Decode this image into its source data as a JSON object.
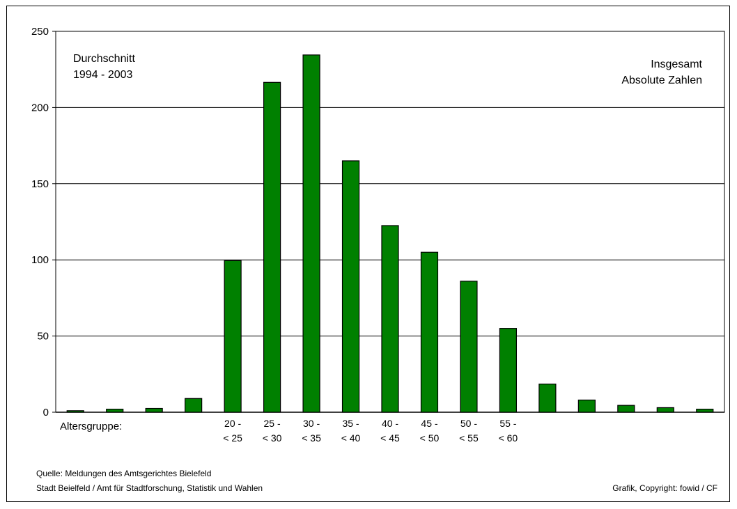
{
  "chart_data": {
    "type": "bar",
    "categories": [
      "",
      "",
      "",
      "",
      "20 -\n< 25",
      "25 -\n< 30",
      "30 -\n< 35",
      "35 -\n< 40",
      "40 -\n< 45",
      "45 -\n< 50",
      "50 -\n< 55",
      "55 -\n< 60",
      "",
      "",
      "",
      "",
      ""
    ],
    "values": [
      1,
      2,
      2.5,
      9,
      99.5,
      216.5,
      234.5,
      165,
      122.5,
      105,
      86,
      55,
      18.5,
      8,
      4.5,
      3,
      2
    ],
    "ylim": [
      0,
      250
    ],
    "yticks": [
      0,
      50,
      100,
      150,
      200,
      250
    ],
    "grid": true,
    "bar_color": "#008000",
    "xlabel": "Altersgruppe:",
    "annotations": {
      "top_left": [
        "Durchschnitt",
        "1994 - 2003"
      ],
      "top_right": [
        "Insgesamt",
        "Absolute Zahlen"
      ]
    }
  },
  "footer": {
    "source_line1": "Quelle: Meldungen des Amtsgerichtes Bielefeld",
    "source_line2": "Stadt Beielfeld / Amt für Stadtforschung, Statistik und Wahlen",
    "copyright": "Grafik, Copyright: fowid / CF"
  }
}
